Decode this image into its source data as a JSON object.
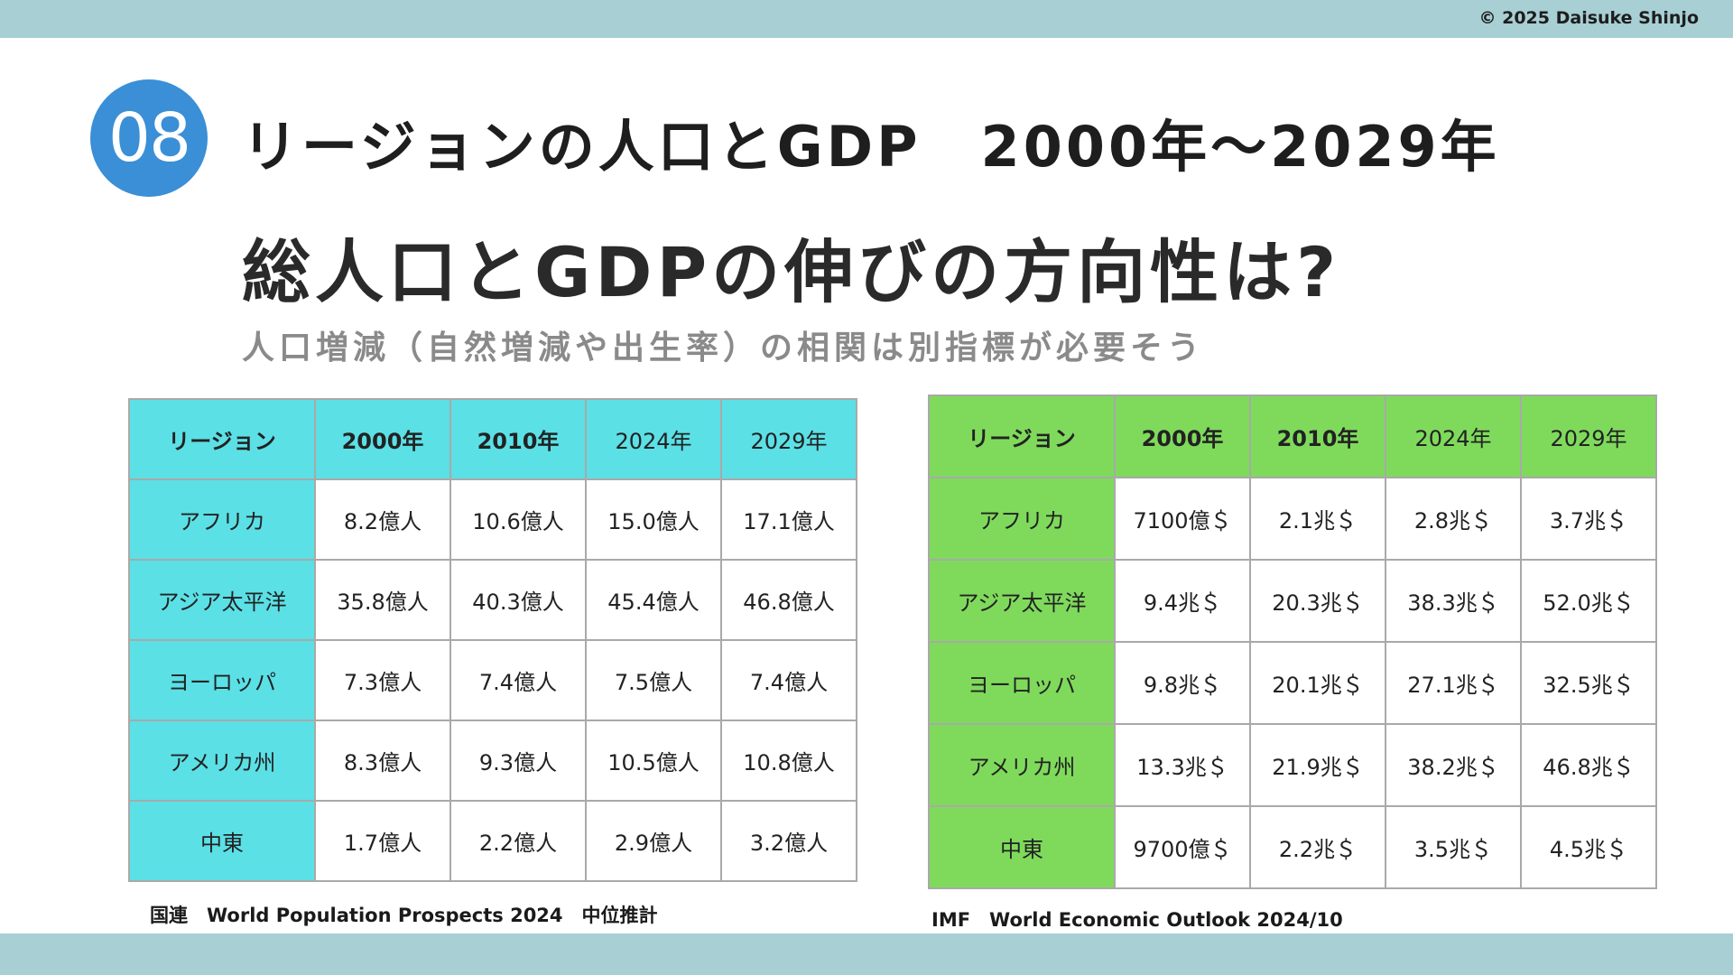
{
  "copyright": "© 2025 Daisuke Shinjo",
  "badge_number": "08",
  "title": "リージョンの人口とGDP　2000年〜2029年",
  "heading": "総人口とGDPの伸びの方向性は?",
  "subheading": "人口増減（自然増減や出生率）の相関は別指標が必要そう",
  "population_table": {
    "headers": [
      "リージョン",
      "2000年",
      "2010年",
      "2024年",
      "2029年"
    ],
    "rows": [
      [
        "アフリカ",
        "8.2億人",
        "10.6億人",
        "15.0億人",
        "17.1億人"
      ],
      [
        "アジア太平洋",
        "35.8億人",
        "40.3億人",
        "45.4億人",
        "46.8億人"
      ],
      [
        "ヨーロッパ",
        "7.3億人",
        "7.4億人",
        "7.5億人",
        "7.4億人"
      ],
      [
        "アメリカ州",
        "8.3億人",
        "9.3億人",
        "10.5億人",
        "10.8億人"
      ],
      [
        "中東",
        "1.7億人",
        "2.2億人",
        "2.9億人",
        "3.2億人"
      ]
    ],
    "source": "国連　World Population Prospects 2024　中位推計",
    "header_color": "#5be0e6"
  },
  "gdp_table": {
    "headers": [
      "リージョン",
      "2000年",
      "2010年",
      "2024年",
      "2029年"
    ],
    "rows": [
      [
        "アフリカ",
        "7100億＄",
        "2.1兆＄",
        "2.8兆＄",
        "3.7兆＄"
      ],
      [
        "アジア太平洋",
        "9.4兆＄",
        "20.3兆＄",
        "38.3兆＄",
        "52.0兆＄"
      ],
      [
        "ヨーロッパ",
        "9.8兆＄",
        "20.1兆＄",
        "27.1兆＄",
        "32.5兆＄"
      ],
      [
        "アメリカ州",
        "13.3兆＄",
        "21.9兆＄",
        "38.2兆＄",
        "46.8兆＄"
      ],
      [
        "中東",
        "9700億＄",
        "2.2兆＄",
        "3.5兆＄",
        "4.5兆＄"
      ]
    ],
    "source": "IMF　World Economic Outlook 2024/10",
    "header_color": "#7fda5c"
  },
  "colors": {
    "bar": "#a7cfd4",
    "badge": "#3a8fd6",
    "cyan_header": "#5be0e6",
    "green_header": "#7fda5c"
  }
}
